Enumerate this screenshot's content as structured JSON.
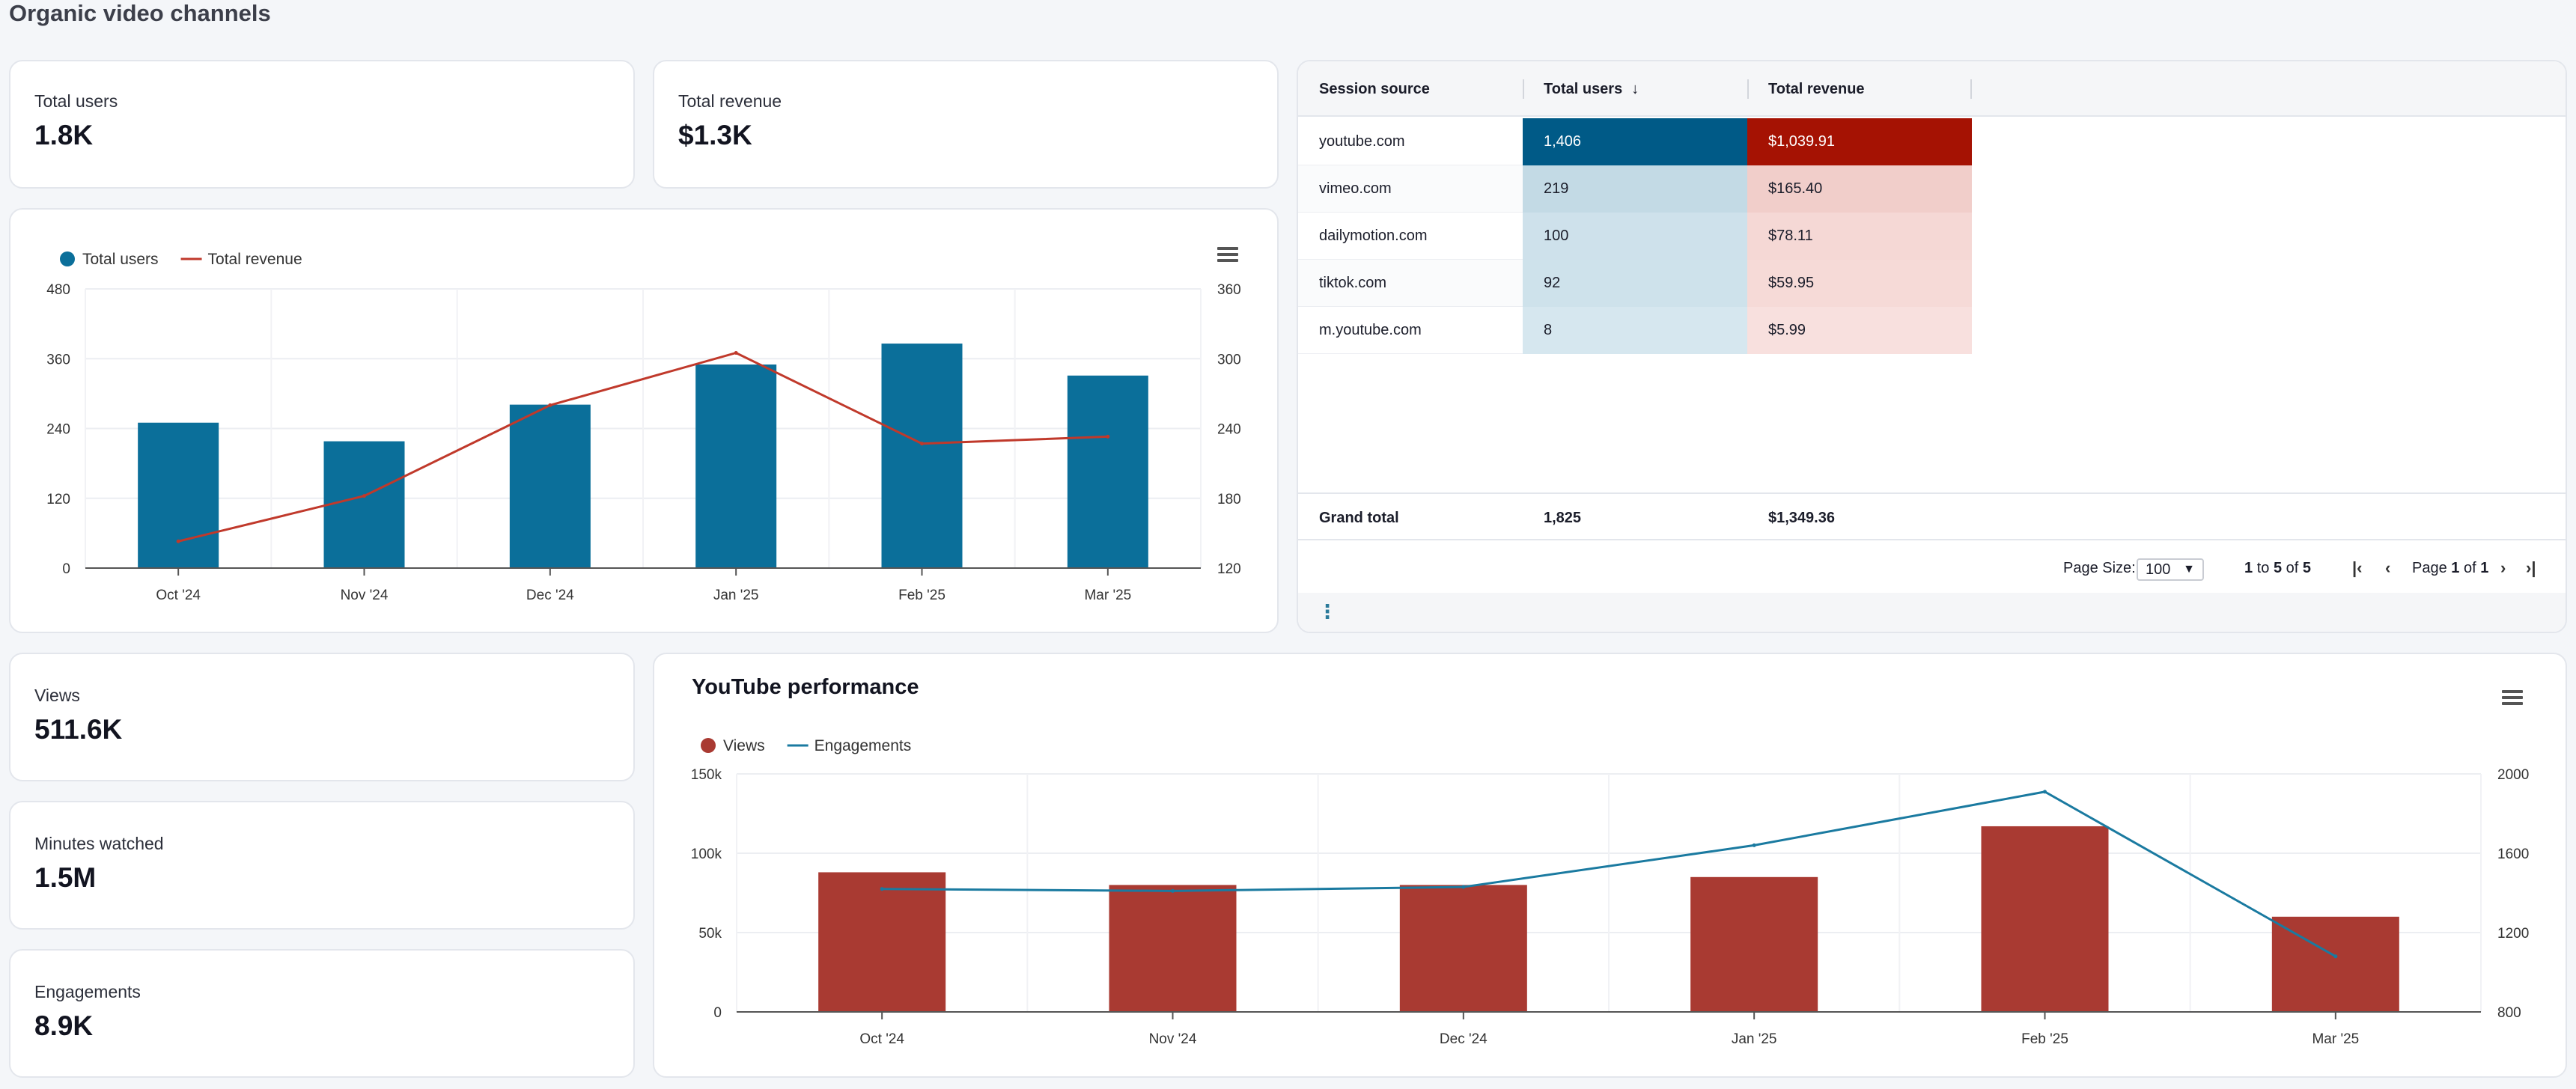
{
  "page": {
    "title": "Organic video channels"
  },
  "kpis_top": [
    {
      "label": "Total users",
      "value": "1.8K"
    },
    {
      "label": "Total revenue",
      "value": "$1.3K"
    }
  ],
  "kpis_left": [
    {
      "label": "Views",
      "value": "511.6K"
    },
    {
      "label": "Minutes watched",
      "value": "1.5M"
    },
    {
      "label": "Engagements",
      "value": "8.9K"
    }
  ],
  "colors": {
    "users_bar": "#0b6f9a",
    "revenue_line": "#c0392b",
    "views_bar": "#a93a32",
    "engagements_line": "#1a7aa0"
  },
  "chart_data": [
    {
      "type": "bar",
      "title": "",
      "categories": [
        "Oct '24",
        "Nov '24",
        "Dec '24",
        "Jan '25",
        "Feb '25",
        "Mar '25"
      ],
      "series": [
        {
          "name": "Total users",
          "type": "bar",
          "axis": "left",
          "values": [
            250,
            218,
            281,
            350,
            386,
            331
          ]
        },
        {
          "name": "Total revenue",
          "type": "line",
          "axis": "right",
          "values": [
            143,
            182,
            260,
            305,
            227,
            233
          ]
        }
      ],
      "y_left": {
        "min": 0,
        "max": 480,
        "ticks": [
          "0",
          "120",
          "240",
          "360",
          "480"
        ]
      },
      "y_right": {
        "min": 120,
        "max": 360,
        "ticks": [
          "120",
          "180",
          "240",
          "300",
          "360"
        ]
      },
      "legend": "top-left"
    },
    {
      "type": "bar",
      "title": "YouTube performance",
      "categories": [
        "Oct '24",
        "Nov '24",
        "Dec '24",
        "Jan '25",
        "Feb '25",
        "Mar '25"
      ],
      "series": [
        {
          "name": "Views",
          "type": "bar",
          "axis": "left",
          "values": [
            88000,
            80000,
            80000,
            85000,
            117000,
            60000
          ]
        },
        {
          "name": "Engagements",
          "type": "line",
          "axis": "right",
          "values": [
            1420,
            1410,
            1430,
            1640,
            1910,
            1080
          ]
        }
      ],
      "y_left": {
        "min": 0,
        "max": 150000,
        "ticks": [
          "0",
          "50k",
          "100k",
          "150k"
        ]
      },
      "y_right": {
        "min": 800,
        "max": 2000,
        "ticks": [
          "800",
          "1200",
          "1600",
          "2000"
        ]
      },
      "legend": "top-left"
    }
  ],
  "table": {
    "headers": [
      "Session source",
      "Total users",
      "Total revenue"
    ],
    "rows": [
      {
        "source": "youtube.com",
        "users": "1,406",
        "revenue": "$1,039.91",
        "users_num": 1406,
        "revenue_num": 1039.91
      },
      {
        "source": "vimeo.com",
        "users": "219",
        "revenue": "$165.40",
        "users_num": 219,
        "revenue_num": 165.4
      },
      {
        "source": "dailymotion.com",
        "users": "100",
        "revenue": "$78.11",
        "users_num": 100,
        "revenue_num": 78.11
      },
      {
        "source": "tiktok.com",
        "users": "92",
        "revenue": "$59.95",
        "users_num": 92,
        "revenue_num": 59.95
      },
      {
        "source": "m.youtube.com",
        "users": "8",
        "revenue": "$5.99",
        "users_num": 8,
        "revenue_num": 5.99
      }
    ],
    "grand": {
      "label": "Grand total",
      "users": "1,825",
      "revenue": "$1,349.36"
    },
    "pager": {
      "page_size_label": "Page Size:",
      "page_size": "100",
      "range_from": "1",
      "range_to_word": "to",
      "range_to": "5",
      "of_word": "of",
      "range_total": "5",
      "page_word": "Page",
      "page": "1",
      "page_of": "of",
      "page_total": "1"
    }
  }
}
